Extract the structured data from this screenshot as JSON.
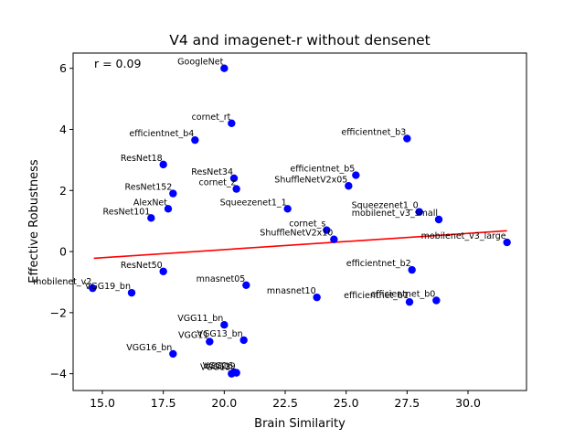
{
  "chart_data": {
    "type": "scatter",
    "title": "V4 and imagenet-r without densenet",
    "xlabel": "Brain Similarity",
    "ylabel": "Effective Robustness",
    "annotation": "r = 0.09",
    "xlim": [
      13.8,
      32.4
    ],
    "ylim": [
      -4.55,
      6.5
    ],
    "x_ticks": [
      15.0,
      17.5,
      20.0,
      22.5,
      25.0,
      27.5,
      30.0
    ],
    "x_tick_labels": [
      "15.0",
      "17.5",
      "20.0",
      "22.5",
      "25.0",
      "27.5",
      "30.0"
    ],
    "y_ticks": [
      -4,
      -2,
      0,
      2,
      4,
      6
    ],
    "y_tick_labels": [
      "−4",
      "−2",
      "0",
      "2",
      "4",
      "6"
    ],
    "grid": false,
    "point_color": "#0000ff",
    "fit_color": "#ff0000",
    "fit_line": {
      "x": [
        14.65,
        31.6
      ],
      "y": [
        -0.22,
        0.68
      ]
    },
    "points": [
      {
        "label": "GoogleNet",
        "x": 20.0,
        "y": 6.0
      },
      {
        "label": "cornet_rt",
        "x": 20.3,
        "y": 4.2
      },
      {
        "label": "efficientnet_b4",
        "x": 18.8,
        "y": 3.65
      },
      {
        "label": "efficientnet_b3",
        "x": 27.5,
        "y": 3.7
      },
      {
        "label": "ResNet18",
        "x": 17.5,
        "y": 2.85
      },
      {
        "label": "ResNet34",
        "x": 20.4,
        "y": 2.4
      },
      {
        "label": "cornet_z",
        "x": 20.5,
        "y": 2.05
      },
      {
        "label": "efficientnet_b5",
        "x": 25.4,
        "y": 2.5
      },
      {
        "label": "ShuffleNetV2x05",
        "x": 25.1,
        "y": 2.15
      },
      {
        "label": "ResNet152",
        "x": 17.9,
        "y": 1.9
      },
      {
        "label": "AlexNet",
        "x": 17.7,
        "y": 1.4
      },
      {
        "label": "ResNet101",
        "x": 17.0,
        "y": 1.1
      },
      {
        "label": "Squeezenet1_1",
        "x": 22.6,
        "y": 1.4
      },
      {
        "label": "Squeezenet1_0",
        "x": 28.0,
        "y": 1.3
      },
      {
        "label": "mobilenet_v3_small",
        "x": 28.8,
        "y": 1.05
      },
      {
        "label": "cornet_s",
        "x": 24.2,
        "y": 0.7
      },
      {
        "label": "ShuffleNetV2x10",
        "x": 24.5,
        "y": 0.4
      },
      {
        "label": "mobilenet_v3_large",
        "x": 31.6,
        "y": 0.3
      },
      {
        "label": "ResNet50",
        "x": 17.5,
        "y": -0.65
      },
      {
        "label": "efficientnet_b2",
        "x": 27.7,
        "y": -0.6
      },
      {
        "label": "mobilenet_v2",
        "x": 14.6,
        "y": -1.2
      },
      {
        "label": "VGG19_bn",
        "x": 16.2,
        "y": -1.35
      },
      {
        "label": "mnasnet05",
        "x": 20.9,
        "y": -1.1
      },
      {
        "label": "mnasnet10",
        "x": 23.8,
        "y": -1.5
      },
      {
        "label": "efficientnet_b1",
        "x": 27.6,
        "y": -1.65
      },
      {
        "label": "efficientnet_b0",
        "x": 28.7,
        "y": -1.6
      },
      {
        "label": "VGG11_bn",
        "x": 20.0,
        "y": -2.4
      },
      {
        "label": "VGG11",
        "x": 19.4,
        "y": -2.95
      },
      {
        "label": "VGG13_bn",
        "x": 20.8,
        "y": -2.9
      },
      {
        "label": "VGG16_bn",
        "x": 17.9,
        "y": -3.35
      },
      {
        "label": "VGG16",
        "x": 20.4,
        "y": -3.95
      },
      {
        "label": "VGG13",
        "x": 20.3,
        "y": -4.0
      },
      {
        "label": "VGG19",
        "x": 20.5,
        "y": -3.97
      }
    ]
  }
}
